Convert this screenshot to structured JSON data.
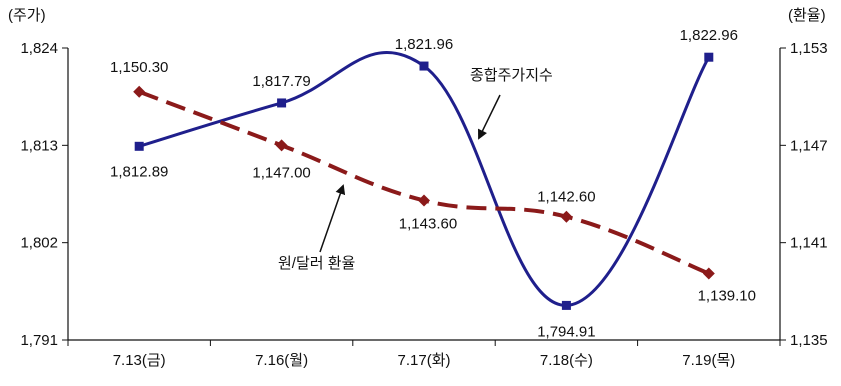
{
  "chart_data": {
    "type": "line",
    "title": "",
    "categories": [
      "7.13(금)",
      "7.16(월)",
      "7.17(화)",
      "7.18(수)",
      "7.19(목)"
    ],
    "left_axis": {
      "unit_label": "(주가)",
      "range": [
        1791,
        1824
      ],
      "tick_values": [
        1791,
        1802,
        1813,
        1824
      ],
      "tick_labels": [
        "1,791",
        "1,802",
        "1,813",
        "1,824"
      ]
    },
    "right_axis": {
      "unit_label": "(환율)",
      "range": [
        1135,
        1153
      ],
      "tick_values": [
        1135,
        1141,
        1147,
        1153
      ],
      "tick_labels": [
        "1,135",
        "1,141",
        "1,147",
        "1,153"
      ]
    },
    "series": [
      {
        "name": "종합주가지수",
        "axis": "left",
        "style": "solid-smooth",
        "color": "#1f1f8c",
        "values": [
          1812.89,
          1817.79,
          1821.96,
          1794.91,
          1822.96
        ],
        "value_labels": [
          "1,812.89",
          "1,817.79",
          "1,821.96",
          "1,794.91",
          "1,822.96"
        ]
      },
      {
        "name": "원/달러 환율",
        "axis": "right",
        "style": "dashed-smooth",
        "color": "#8b1a1a",
        "values": [
          1150.3,
          1147.0,
          1143.6,
          1142.6,
          1139.1
        ],
        "value_labels": [
          "1,150.30",
          "1,147.00",
          "1,143.60",
          "1,142.60",
          "1,139.10"
        ]
      }
    ],
    "grid": false,
    "legend": "inline-annotations"
  }
}
